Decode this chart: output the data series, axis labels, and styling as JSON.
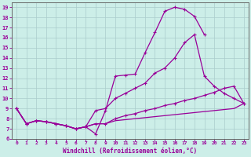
{
  "xlabel": "Windchill (Refroidissement éolien,°C)",
  "background_color": "#cceee8",
  "grid_color": "#aacccc",
  "line_color": "#990099",
  "xlim": [
    -0.5,
    23.5
  ],
  "ylim": [
    6,
    19.5
  ],
  "xticks": [
    0,
    1,
    2,
    3,
    4,
    5,
    6,
    7,
    8,
    9,
    10,
    11,
    12,
    13,
    14,
    15,
    16,
    17,
    18,
    19,
    20,
    21,
    22,
    23
  ],
  "yticks": [
    6,
    7,
    8,
    9,
    10,
    11,
    12,
    13,
    14,
    15,
    16,
    17,
    18,
    19
  ],
  "curves": [
    {
      "x": [
        0,
        1,
        2,
        3,
        4,
        5,
        6,
        7,
        8,
        9,
        10,
        11,
        12,
        13,
        14,
        15,
        16,
        17,
        18,
        19
      ],
      "y": [
        9,
        7.5,
        7.8,
        7.7,
        7.5,
        7.3,
        7.0,
        7.2,
        6.5,
        8.8,
        12.2,
        12.3,
        12.4,
        14.5,
        16.5,
        18.6,
        19.0,
        18.8,
        18.1,
        16.3
      ],
      "marker": "+"
    },
    {
      "x": [
        0,
        1,
        2,
        3,
        4,
        5,
        6,
        7,
        8,
        9,
        10,
        11,
        12,
        13,
        14,
        15,
        16,
        17,
        18,
        19,
        20,
        21,
        22,
        23
      ],
      "y": [
        9.0,
        7.5,
        7.8,
        7.7,
        7.5,
        7.3,
        7.0,
        7.2,
        8.8,
        9.0,
        10.0,
        10.5,
        11.0,
        11.5,
        12.5,
        13.0,
        14.0,
        15.5,
        16.3,
        12.2,
        11.2,
        10.5,
        10.0,
        9.5
      ],
      "marker": "+"
    },
    {
      "x": [
        0,
        1,
        2,
        3,
        4,
        5,
        6,
        7,
        8,
        9,
        10,
        11,
        12,
        13,
        14,
        15,
        16,
        17,
        18,
        19,
        20,
        21,
        22,
        23
      ],
      "y": [
        9.0,
        7.5,
        7.8,
        7.7,
        7.5,
        7.3,
        7.0,
        7.2,
        7.5,
        7.5,
        8.0,
        8.3,
        8.5,
        8.8,
        9.0,
        9.3,
        9.5,
        9.8,
        10.0,
        10.3,
        10.6,
        11.0,
        11.2,
        9.5
      ],
      "marker": "+"
    },
    {
      "x": [
        0,
        1,
        2,
        3,
        4,
        5,
        6,
        7,
        8,
        9,
        10,
        11,
        12,
        13,
        14,
        15,
        16,
        17,
        18,
        19,
        20,
        21,
        22,
        23
      ],
      "y": [
        9.0,
        7.5,
        7.8,
        7.7,
        7.5,
        7.3,
        7.0,
        7.2,
        7.5,
        7.5,
        7.8,
        7.9,
        8.0,
        8.1,
        8.2,
        8.3,
        8.4,
        8.5,
        8.6,
        8.7,
        8.8,
        8.9,
        9.0,
        9.5
      ],
      "marker": null
    }
  ]
}
